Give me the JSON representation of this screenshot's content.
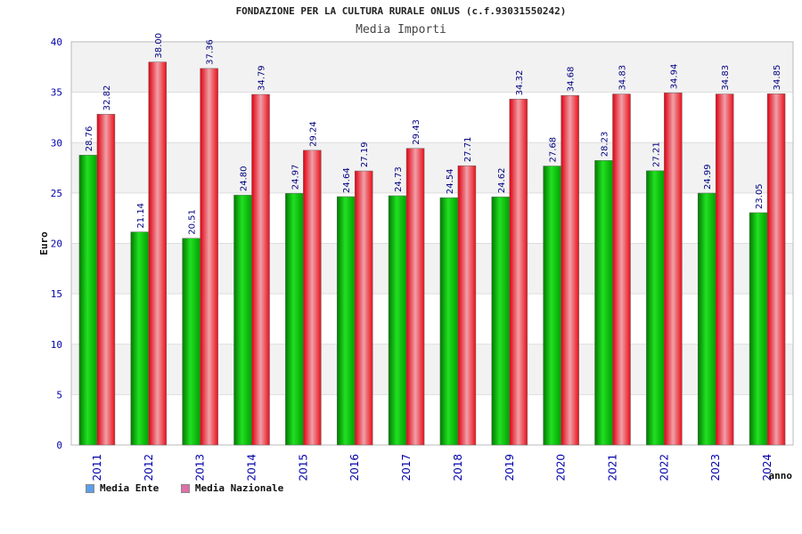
{
  "header": {
    "title": "FONDAZIONE PER LA CULTURA RURALE ONLUS (c.f.93031550242)",
    "subtitle": "Media Importi"
  },
  "chart_data": {
    "type": "bar",
    "title": "FONDAZIONE PER LA CULTURA RURALE ONLUS (c.f.93031550242)",
    "subtitle": "Media Importi",
    "xlabel": "anno",
    "ylabel": "Euro",
    "ylim": [
      0,
      40
    ],
    "yticks": [
      0,
      5,
      10,
      15,
      20,
      25,
      30,
      35,
      40
    ],
    "grid": true,
    "legend_position": "bottom-left",
    "categories": [
      "2011",
      "2012",
      "2013",
      "2014",
      "2015",
      "2016",
      "2017",
      "2018",
      "2019",
      "2020",
      "2021",
      "2022",
      "2023",
      "2024"
    ],
    "series": [
      {
        "name": "Media Ente",
        "color": "#00a000",
        "values": [
          28.76,
          21.14,
          20.51,
          24.8,
          24.97,
          24.64,
          24.73,
          24.54,
          24.62,
          27.68,
          28.23,
          27.21,
          24.99,
          23.05
        ],
        "labels": [
          "28.76",
          "21.14",
          "20.51",
          "24.80",
          "24.97",
          "24.64",
          "24.73",
          "24.54",
          "24.62",
          "27.68",
          "28.23",
          "27.21",
          "24.99",
          "23.05"
        ]
      },
      {
        "name": "Media Nazionale",
        "color": "#e8101a",
        "values": [
          32.82,
          38.0,
          37.36,
          34.79,
          29.24,
          27.19,
          29.43,
          27.71,
          34.32,
          34.68,
          34.83,
          34.94,
          34.83,
          34.85
        ],
        "labels": [
          "32.82",
          "38.00",
          "37.36",
          "34.79",
          "29.24",
          "27.19",
          "29.43",
          "27.71",
          "34.32",
          "34.68",
          "34.83",
          "34.94",
          "34.83",
          "34.85"
        ]
      }
    ],
    "legend": [
      {
        "label": "Media Ente",
        "color": "#5aa0e8"
      },
      {
        "label": "Media Nazionale",
        "color": "#e070a8"
      }
    ]
  }
}
